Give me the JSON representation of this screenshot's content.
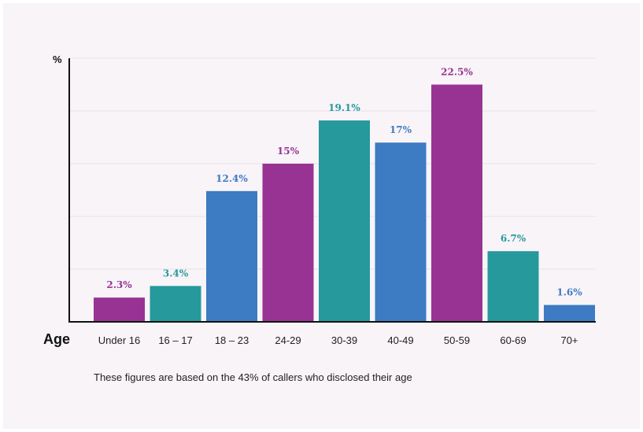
{
  "chart_data": {
    "type": "bar",
    "title": "",
    "xlabel": "Age",
    "ylabel": "%",
    "categories": [
      "Under 16",
      "16 – 17",
      "18 – 23",
      "24-29",
      "30-39",
      "40-49",
      "50-59",
      "60-69",
      "70+"
    ],
    "values": [
      2.3,
      3.4,
      12.4,
      15,
      19.1,
      17,
      22.5,
      6.7,
      1.6
    ],
    "value_labels": [
      "2.3%",
      "3.4%",
      "12.4%",
      "15%",
      "19.1%",
      "17%",
      "22.5%",
      "6.7%",
      "1.6%"
    ],
    "bar_colors": [
      "#993393",
      "#26999c",
      "#3d7bc2",
      "#993393",
      "#26999c",
      "#3d7bc2",
      "#993393",
      "#26999c",
      "#3d7bc2"
    ],
    "ylim": [
      0,
      25
    ],
    "grid": true,
    "legend": "none"
  },
  "footnote": "These figures are based on the 43% of callers who disclosed their age",
  "colors": {
    "background": "#f8f4f8",
    "purple": "#993393",
    "teal": "#26999c",
    "blue": "#3d7bc2"
  }
}
